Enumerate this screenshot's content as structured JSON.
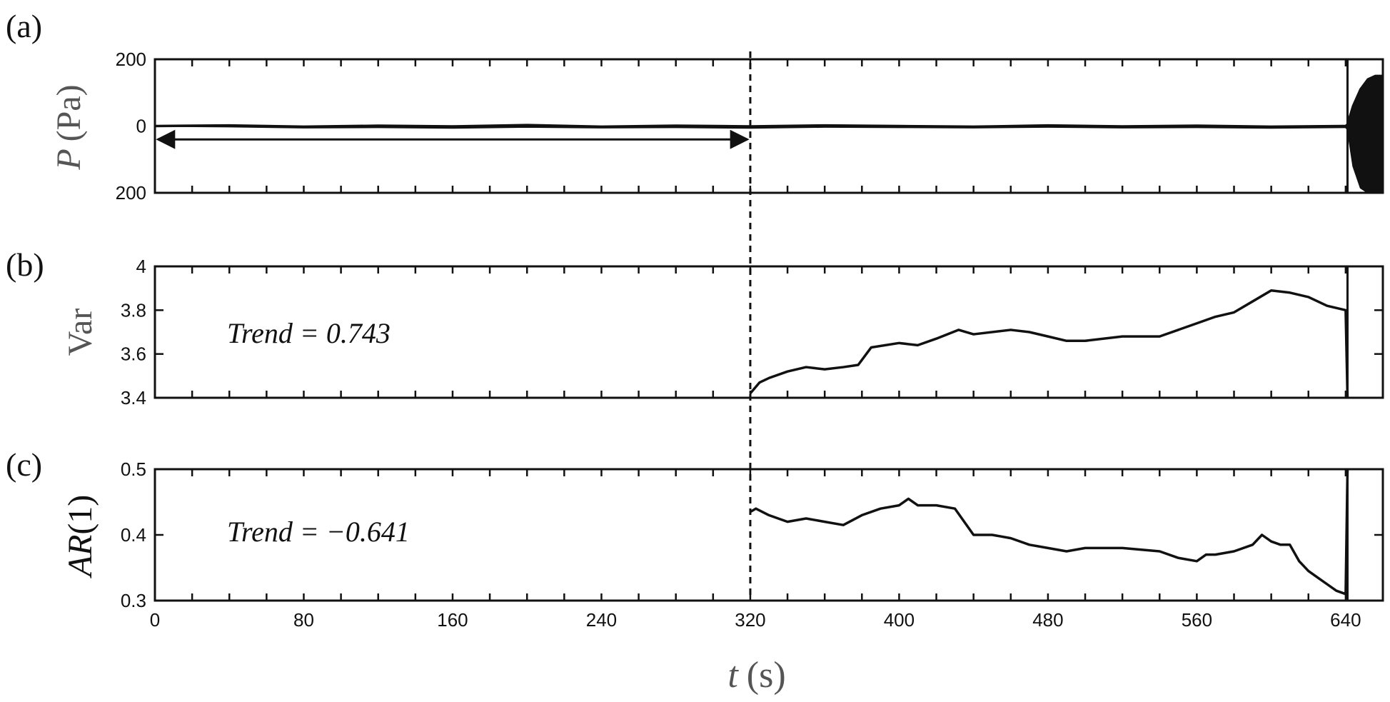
{
  "chart_data": [
    {
      "panel_label": "(a)",
      "type": "line",
      "ylabel_var": "P",
      "ylabel_unit": "(Pa)",
      "yticks": [
        "200",
        "0",
        "200"
      ],
      "ylim": [
        -200,
        200
      ],
      "xlim": [
        0,
        660
      ],
      "series": [
        {
          "x": [
            0,
            40,
            80,
            120,
            160,
            200,
            240,
            280,
            320,
            360,
            400,
            440,
            480,
            520,
            560,
            600,
            638,
            640,
            641,
            644,
            648,
            652,
            656,
            660
          ],
          "values": [
            0,
            2,
            -2,
            1,
            -1,
            3,
            -2,
            1,
            -1,
            2,
            0,
            -2,
            2,
            -1,
            1,
            -2,
            0,
            0,
            5,
            60,
            110,
            140,
            150,
            150
          ],
          "band_min": [
            0,
            -2,
            -5,
            -4,
            -6,
            -3,
            -5,
            -4,
            -6,
            -3,
            -4,
            -5,
            -3,
            -5,
            -4,
            -6,
            -4,
            -4,
            -10,
            -120,
            -185,
            -200,
            -200,
            -200
          ]
        }
      ],
      "annotations": {
        "double_arrow_x": [
          0,
          320
        ],
        "dashed_line_x": 320,
        "event_line_x": 641
      }
    },
    {
      "panel_label": "(b)",
      "type": "line",
      "ylabel": "Var",
      "yticks": [
        "4",
        "3.8",
        "3.6",
        "3.4"
      ],
      "ytick_values": [
        4,
        3.8,
        3.6,
        3.4
      ],
      "ylim": [
        3.4,
        4.0
      ],
      "xlim": [
        0,
        660
      ],
      "trend_text": "Trend = 0.743",
      "series": [
        {
          "x": [
            320,
            325,
            330,
            340,
            350,
            360,
            370,
            378,
            385,
            400,
            410,
            420,
            432,
            440,
            460,
            470,
            480,
            490,
            500,
            520,
            540,
            560,
            570,
            580,
            590,
            600,
            610,
            620,
            630,
            640,
            641
          ],
          "values": [
            3.42,
            3.47,
            3.49,
            3.52,
            3.54,
            3.53,
            3.54,
            3.55,
            3.63,
            3.65,
            3.64,
            3.67,
            3.71,
            3.69,
            3.71,
            3.7,
            3.68,
            3.66,
            3.66,
            3.68,
            3.68,
            3.74,
            3.77,
            3.79,
            3.84,
            3.89,
            3.88,
            3.86,
            3.82,
            3.8,
            3.4
          ]
        }
      ],
      "annotations": {
        "dashed_line_x": 320,
        "event_line_x": 641
      }
    },
    {
      "panel_label": "(c)",
      "type": "line",
      "ylabel_var": "AR",
      "ylabel_arg": "(1)",
      "yticks": [
        "0.5",
        "0.4",
        "0.3"
      ],
      "ytick_values": [
        0.5,
        0.4,
        0.3
      ],
      "ylim": [
        0.3,
        0.5
      ],
      "xlim": [
        0,
        660
      ],
      "xticks": [
        0,
        80,
        160,
        240,
        320,
        400,
        480,
        560,
        640
      ],
      "xlabel_var": "t",
      "xlabel_unit": "(s)",
      "trend_text": "Trend = −0.641",
      "series": [
        {
          "x": [
            320,
            323,
            330,
            340,
            350,
            360,
            370,
            380,
            390,
            400,
            405,
            410,
            420,
            430,
            440,
            450,
            460,
            470,
            480,
            490,
            500,
            520,
            540,
            550,
            560,
            565,
            570,
            580,
            590,
            595,
            600,
            605,
            610,
            615,
            620,
            625,
            630,
            635,
            640,
            641
          ],
          "values": [
            0.435,
            0.44,
            0.43,
            0.42,
            0.425,
            0.42,
            0.415,
            0.43,
            0.44,
            0.445,
            0.455,
            0.445,
            0.445,
            0.44,
            0.4,
            0.4,
            0.395,
            0.385,
            0.38,
            0.375,
            0.38,
            0.38,
            0.375,
            0.365,
            0.36,
            0.37,
            0.37,
            0.375,
            0.385,
            0.4,
            0.39,
            0.385,
            0.385,
            0.36,
            0.345,
            0.335,
            0.325,
            0.315,
            0.31,
            0.5
          ]
        }
      ],
      "annotations": {
        "dashed_line_x": 320,
        "event_line_x": 641
      }
    }
  ]
}
